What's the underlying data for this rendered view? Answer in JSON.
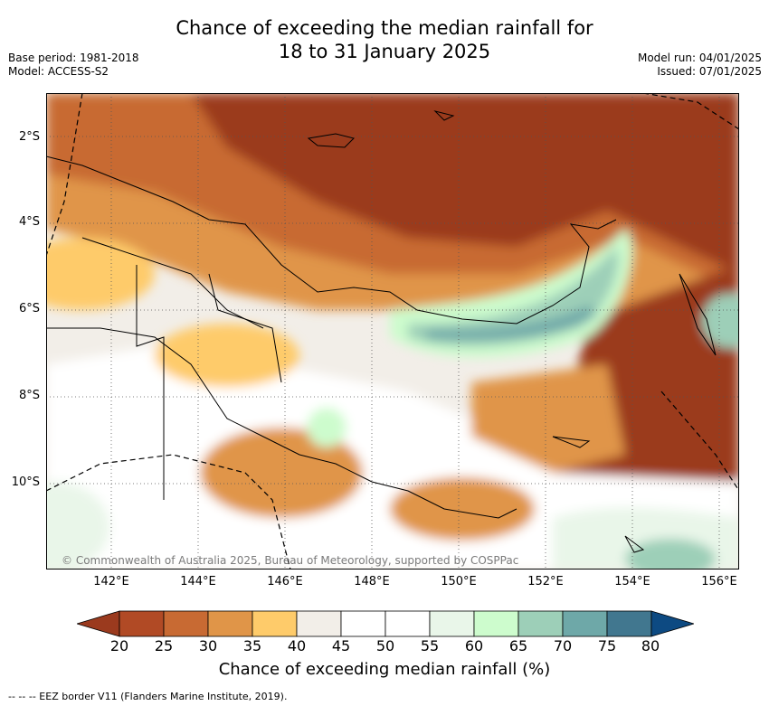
{
  "title_line1": "Chance of exceeding the median rainfall for",
  "title_line2": "18 to 31 January 2025",
  "base_period": "Base period: 1981-2018",
  "model": "Model: ACCESS-S2",
  "model_run": "Model run: 04/01/2025",
  "issued": "Issued: 07/01/2025",
  "copyright": "© Commonwealth of Australia 2025, Bureau of Meteorology, supported by COSPPac",
  "lat_labels": [
    "2°S",
    "4°S",
    "6°S",
    "8°S",
    "10°S"
  ],
  "lon_labels": [
    "142°E",
    "144°E",
    "146°E",
    "148°E",
    "150°E",
    "152°E",
    "154°E",
    "156°E"
  ],
  "colorbar_ticks": [
    "20",
    "25",
    "30",
    "35",
    "40",
    "45",
    "50",
    "55",
    "60",
    "65",
    "70",
    "75",
    "80"
  ],
  "colorbar_colors": [
    "#9b3a1e",
    "#b14a25",
    "#c86a33",
    "#e09548",
    "#fecb6a",
    "#f2eee8",
    "#ffffff",
    "#ffffff",
    "#e9f6e9",
    "#cdfccd",
    "#9dcfb8",
    "#6ea8a8",
    "#41778f",
    "#0d4a82"
  ],
  "colorbar_label": "Chance of exceeding median rainfall (%)",
  "footer": "--  --  -- EEZ border V11 (Flanders Marine Institute, 2019)."
}
